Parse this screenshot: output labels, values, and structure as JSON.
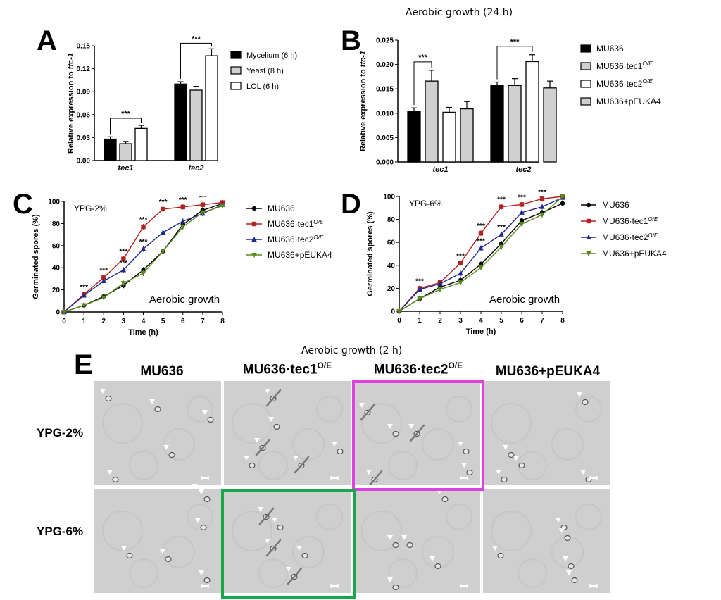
{
  "panels": {
    "A": {
      "letter": "A"
    },
    "B": {
      "letter": "B"
    },
    "C": {
      "letter": "C"
    },
    "D": {
      "letter": "D"
    },
    "E": {
      "letter": "E"
    }
  },
  "colors": {
    "mycelium": "#000000",
    "yeast": "#d0d0d0",
    "lol": "#ffffff",
    "mu636": "#000000",
    "tec1": "#b22222",
    "tec2": "#1f2a8c",
    "peuka4": "#5a8a1e",
    "highlight_magenta": "#e040e0",
    "highlight_green": "#1aa64a"
  },
  "panel_B_title": "Aerobic growth (24 h)",
  "panel_E_title": "Aerobic growth (2 h)",
  "chart_data": [
    {
      "id": "A",
      "type": "bar",
      "ylabel": "Relative expression to ",
      "ylabel_italic": "tfc-1",
      "ylim": [
        0,
        0.15
      ],
      "yticks": [
        "0.00",
        "0.03",
        "0.06",
        "0.09",
        "0.12",
        "0.15"
      ],
      "categories": [
        "tec1",
        "tec2"
      ],
      "series": [
        {
          "name": "Mycelium (6 h)",
          "values": [
            0.028,
            0.1
          ],
          "errors": [
            0.003,
            0.003
          ]
        },
        {
          "name": "Yeast (8 h)",
          "values": [
            0.022,
            0.092
          ],
          "errors": [
            0.003,
            0.005
          ]
        },
        {
          "name": "LOL (6 h)",
          "values": [
            0.042,
            0.137
          ],
          "errors": [
            0.004,
            0.009
          ]
        }
      ],
      "significance": [
        "***",
        "***"
      ],
      "legend": "right"
    },
    {
      "id": "B",
      "type": "bar",
      "ylabel": "Relative expression to ",
      "ylabel_italic": "tfc-1",
      "ylim": [
        0,
        0.025
      ],
      "yticks": [
        "0.000",
        "0.005",
        "0.010",
        "0.015",
        "0.020",
        "0.025"
      ],
      "categories": [
        "tec1",
        "tec2"
      ],
      "series": [
        {
          "name": "MU636",
          "values": [
            0.0104,
            0.0157
          ],
          "errors": [
            0.0007,
            0.0007
          ]
        },
        {
          "name": "MU636·tec1",
          "sup": "O/E",
          "values": [
            0.0166,
            0.0157
          ],
          "errors": [
            0.0022,
            0.0014
          ]
        },
        {
          "name": "MU636·tec2",
          "sup": "O/E",
          "values": [
            0.0102,
            0.0206
          ],
          "errors": [
            0.001,
            0.0014
          ]
        },
        {
          "name": "MU636+pEUKA4",
          "values": [
            0.0109,
            0.0152
          ],
          "errors": [
            0.0015,
            0.0014
          ]
        }
      ],
      "significance": [
        "***",
        "***"
      ],
      "legend": "right"
    },
    {
      "id": "C",
      "type": "line",
      "inner_label": "YPG-2%",
      "annotation": "Aerobic growth",
      "xlabel": "Time (h)",
      "ylabel": "Germinated spores (%)",
      "x": [
        0,
        1,
        2,
        3,
        4,
        5,
        6,
        7,
        8
      ],
      "ylim": [
        0,
        100
      ],
      "yticks": [
        "0",
        "20",
        "40",
        "60",
        "80",
        "100"
      ],
      "series": [
        {
          "name": "MU636",
          "values": [
            0,
            6,
            14,
            24,
            38,
            55,
            79,
            92,
            98
          ]
        },
        {
          "name": "MU636·tec1",
          "sup": "O/E",
          "values": [
            0,
            16,
            31,
            48,
            77,
            93,
            95,
            97,
            99
          ]
        },
        {
          "name": "MU636·tec2",
          "sup": "O/E",
          "values": [
            0,
            15,
            28,
            38,
            57,
            72,
            82,
            89,
            97
          ]
        },
        {
          "name": "MU636+pEUKA4",
          "values": [
            0,
            6,
            13,
            26,
            35,
            55,
            77,
            90,
            96
          ]
        }
      ],
      "stars_at_x": [
        1,
        2,
        3,
        4,
        5,
        6,
        7
      ],
      "stars_tec2_at_x": [
        3,
        4
      ],
      "legend": "right"
    },
    {
      "id": "D",
      "type": "line",
      "inner_label": "YPG-6%",
      "annotation": "Aerobic growth",
      "xlabel": "Time (h)",
      "ylabel": "Germinated spores (%)",
      "x": [
        0,
        1,
        2,
        3,
        4,
        5,
        6,
        7,
        8
      ],
      "ylim": [
        0,
        100
      ],
      "yticks": [
        "0",
        "20",
        "40",
        "60",
        "80",
        "100"
      ],
      "series": [
        {
          "name": "MU636",
          "values": [
            0,
            11,
            21,
            27,
            41,
            59,
            79,
            86,
            94
          ]
        },
        {
          "name": "MU636·tec1",
          "sup": "O/E",
          "values": [
            0,
            20,
            25,
            42,
            68,
            91,
            93,
            98,
            100
          ]
        },
        {
          "name": "MU636·tec2",
          "sup": "O/E",
          "values": [
            0,
            19,
            24,
            33,
            55,
            67,
            86,
            91,
            99
          ]
        },
        {
          "name": "MU636+pEUKA4",
          "values": [
            0,
            11,
            19,
            25,
            38,
            56,
            76,
            84,
            100
          ]
        }
      ],
      "stars_at_x": [
        1,
        3,
        4,
        5,
        6,
        7
      ],
      "stars_tec2_at_x": [
        4,
        5
      ],
      "legend": "right"
    }
  ],
  "micrographs": {
    "columns": [
      {
        "label": "MU636"
      },
      {
        "label": "MU636·tec1",
        "sup": "O/E"
      },
      {
        "label": "MU636·tec2",
        "sup": "O/E"
      },
      {
        "label": "MU636+pEUKA4"
      }
    ],
    "rows": [
      {
        "label": "YPG-2%"
      },
      {
        "label": "YPG-6%"
      }
    ]
  }
}
